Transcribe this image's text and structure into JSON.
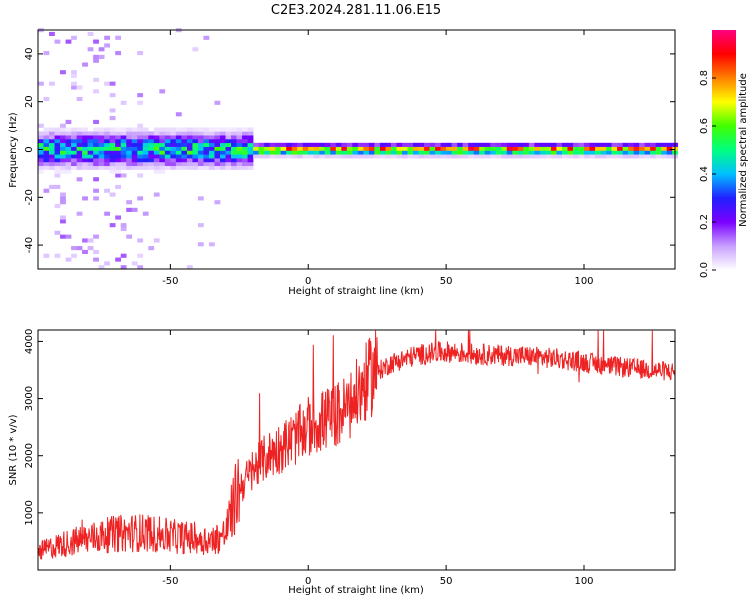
{
  "title": "C2E3.2024.281.11.06.E15",
  "chart_data": [
    {
      "type": "heatmap",
      "xlabel": "Height of straight line (km)",
      "ylabel": "Frequency (Hz)",
      "xlim": [
        -98,
        133
      ],
      "ylim": [
        -50,
        50
      ],
      "x_ticks": [
        -50,
        0,
        50,
        100
      ],
      "y_ticks": [
        -40,
        -20,
        0,
        20,
        40
      ],
      "colorbar": {
        "label": "Normalized spectral amplitude",
        "range": [
          0,
          1
        ],
        "ticks": [
          "0.0",
          "0.2",
          "0.4",
          "0.6",
          "0.8"
        ],
        "colors": [
          "#ffffff",
          "#c8a0ff",
          "#7a00ff",
          "#2020ff",
          "#00c0ff",
          "#00ff80",
          "#40ff00",
          "#ffff00",
          "#ff8000",
          "#ff0000",
          "#ff0080"
        ]
      },
      "peak_frequency_hz": 0,
      "band_halfwidth_hz": {
        "below_-20km": 6,
        "above_-20km": 2
      },
      "grid": false
    },
    {
      "type": "line",
      "xlabel": "Height of straight line (km)",
      "ylabel": "SNR (10 * v/v)",
      "xlim": [
        -98,
        133
      ],
      "ylim": [
        0,
        4200
      ],
      "x_ticks": [
        -50,
        0,
        50,
        100
      ],
      "y_ticks": [
        1000,
        2000,
        3000,
        4000
      ],
      "color": "#ee2222",
      "series": [
        {
          "x": [
            -98,
            -90,
            -80,
            -70,
            -60,
            -50,
            -40,
            -35,
            -30,
            -25,
            -20,
            -15,
            -10,
            -5,
            0,
            5,
            10,
            15,
            20,
            25,
            30,
            40,
            50,
            60,
            70,
            80,
            90,
            100,
            110,
            120,
            133
          ],
          "values": [
            300,
            420,
            520,
            600,
            620,
            560,
            520,
            480,
            600,
            1400,
            1700,
            1950,
            2100,
            2250,
            2450,
            2550,
            2650,
            2800,
            3150,
            3450,
            3600,
            3750,
            3800,
            3760,
            3740,
            3720,
            3680,
            3620,
            3550,
            3500,
            3450
          ]
        }
      ],
      "grid": false
    }
  ]
}
